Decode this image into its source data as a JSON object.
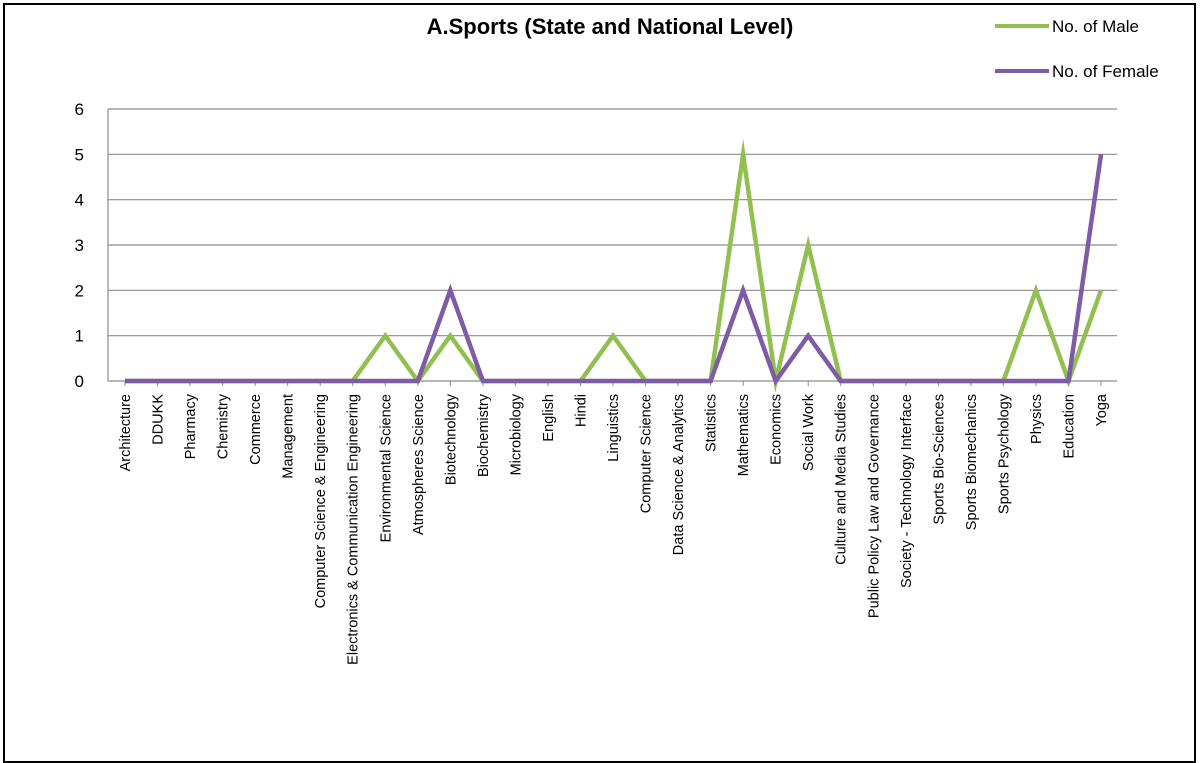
{
  "chart_data": {
    "type": "line",
    "title": "A.Sports (State and National Level)",
    "xlabel": "",
    "ylabel": "",
    "ylim": [
      0,
      6
    ],
    "yticks": [
      "0",
      "1",
      "2",
      "3",
      "4",
      "5",
      "6"
    ],
    "grid": true,
    "legend_position": "top-right",
    "categories": [
      "Architecture",
      "DDUKK",
      "Pharmacy",
      "Chemistry",
      "Commerce",
      "Management",
      "Computer Science & Engineering",
      "Electronics & Communication Engineering",
      "Environmental Science",
      "Atmospheres Science",
      "Biotechnology",
      "Biochemistry",
      "Microbiology",
      "English",
      "Hindi",
      "Linguistics",
      "Computer Science",
      "Data Science & Analytics",
      "Statistics",
      "Mathematics",
      "Economics",
      "Social Work",
      "Culture and Media Studies",
      "Public Policy Law and Governance",
      "Society - Technology Interface",
      "Sports Bio-Sciences",
      "Sports Biomechanics",
      "Sports Psychology",
      "Physics",
      "Education",
      "Yoga"
    ],
    "series": [
      {
        "name": "No. of Male",
        "color": "#92c050",
        "values": [
          0,
          0,
          0,
          0,
          0,
          0,
          0,
          0,
          1,
          0,
          1,
          0,
          0,
          0,
          0,
          1,
          0,
          0,
          0,
          5,
          0,
          3,
          0,
          0,
          0,
          0,
          0,
          0,
          2,
          0,
          2
        ]
      },
      {
        "name": "No. of Female",
        "color": "#7d5ba6",
        "values": [
          0,
          0,
          0,
          0,
          0,
          0,
          0,
          0,
          0,
          0,
          2,
          0,
          0,
          0,
          0,
          0,
          0,
          0,
          0,
          2,
          0,
          1,
          0,
          0,
          0,
          0,
          0,
          0,
          0,
          0,
          5
        ]
      }
    ]
  }
}
